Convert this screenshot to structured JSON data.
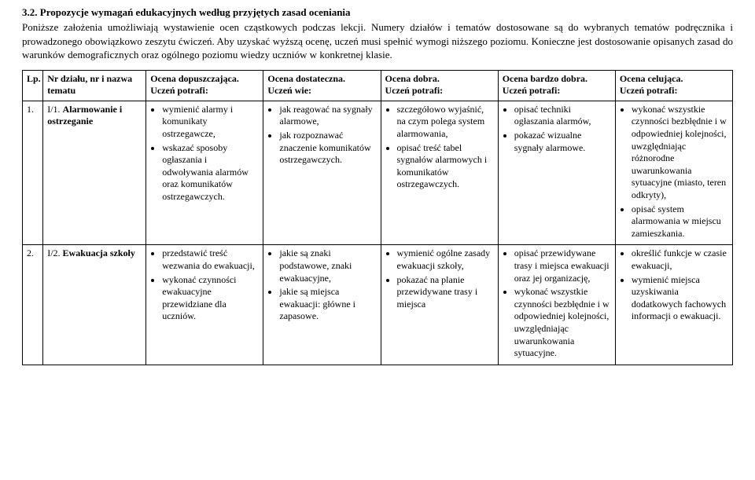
{
  "heading": "3.2. Propozycje wymagań edukacyjnych według przyjętych zasad oceniania",
  "intro": "Poniższe założenia umożliwiają wystawienie ocen cząstkowych podczas lekcji. Numery działów i tematów dostosowane są do wybranych tematów podręcznika i prowadzonego obowiązkowo zeszytu ćwiczeń. Aby uzyskać wyższą ocenę, uczeń musi spełnić wymogi niższego poziomu. Konieczne jest dostosowanie opisanych zasad do warunków demograficznych oraz ogólnego poziomu wiedzy uczniów w konkretnej klasie.",
  "headers": {
    "lp": "Lp.",
    "topic": "Nr działu, nr i nazwa tematu",
    "g1_line1": "Ocena dopuszczająca.",
    "g1_line2": "Uczeń potrafi:",
    "g2_line1": "Ocena dostateczna.",
    "g2_line2": "Uczeń wie:",
    "g3_line1": "Ocena dobra.",
    "g3_line2": "Uczeń potrafi:",
    "g4_line1": "Ocena bardzo dobra.",
    "g4_line2": "Uczeń potrafi:",
    "g5_line1": "Ocena celująca.",
    "g5_line2": "Uczeń potrafi:"
  },
  "rows": [
    {
      "lp": "1.",
      "topic_code": "I/1.",
      "topic_name": "Alarmowanie i ostrzeganie",
      "g1": [
        "wymienić alarmy i komunikaty ostrzegawcze,",
        "wskazać sposoby ogłaszania i odwoływania alarmów oraz komunikatów ostrzegawczych."
      ],
      "g2": [
        "jak reagować na sygnały alarmowe,",
        "jak rozpoznawać znaczenie komunikatów ostrzegawczych."
      ],
      "g3": [
        "szczegółowo wyjaśnić, na czym polega system alarmowania,",
        "opisać treść tabel sygnałów alarmowych i komunikatów ostrzegawczych."
      ],
      "g4": [
        "opisać techniki ogłaszania alarmów,",
        "pokazać wizualne sygnały alarmowe."
      ],
      "g5": [
        "wykonać wszystkie czynności bezbłędnie i w odpowiedniej kolejności, uwzględniając różnorodne uwarunkowania sytuacyjne (miasto, teren odkryty),",
        "opisać system alarmowania w miejscu zamieszkania."
      ]
    },
    {
      "lp": "2.",
      "topic_code": "I/2.",
      "topic_name": "Ewakuacja szkoły",
      "g1": [
        "przedstawić treść wezwania do ewakuacji,",
        "wykonać czynności ewakuacyjne przewidziane dla uczniów."
      ],
      "g2": [
        "jakie są znaki podstawowe, znaki ewakuacyjne,",
        "jakie są miejsca ewakuacji: główne i zapasowe."
      ],
      "g3": [
        "wymienić ogólne zasady ewakuacji szkoły,",
        "pokazać na planie przewidywane trasy i miejsca"
      ],
      "g4": [
        "opisać przewidywane trasy i miejsca ewakuacji oraz jej organizację,",
        "wykonać wszystkie czynności bezbłędnie i w odpowiedniej kolejności, uwzględniając uwarunkowania sytuacyjne."
      ],
      "g5": [
        "określić funkcje w czasie ewakuacji,",
        "wymienić miejsca uzyskiwania dodatkowych fachowych informacji o ewakuacji."
      ]
    }
  ]
}
